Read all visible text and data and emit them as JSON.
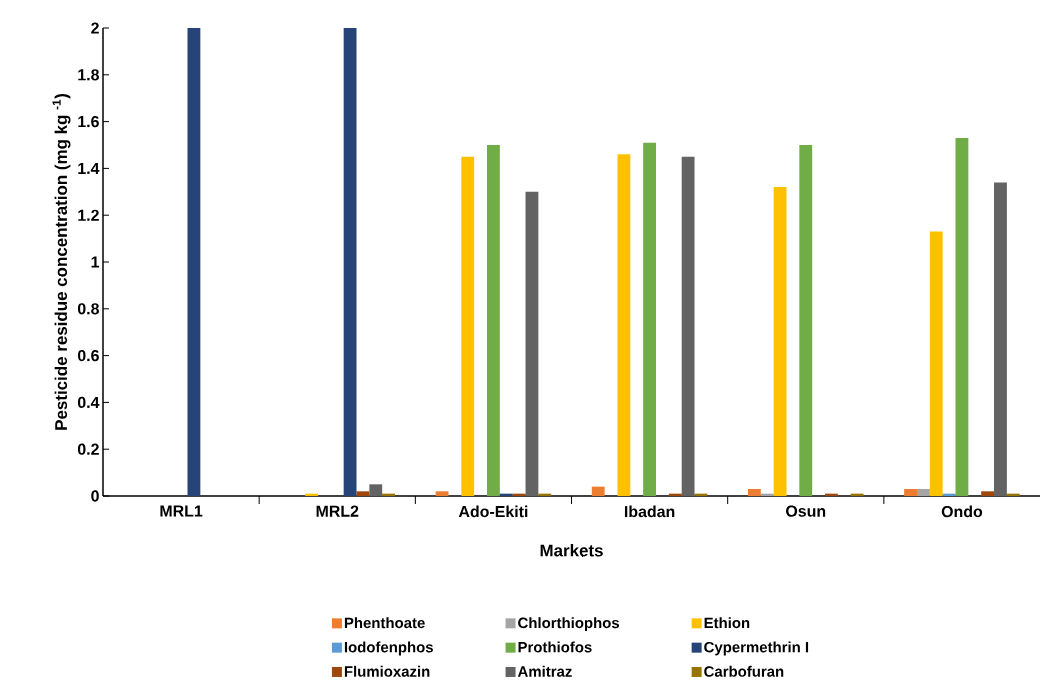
{
  "chart_data": {
    "type": "bar",
    "xlabel": "Markets",
    "ylabel": "Pesticide residue concentration (mg kg $^{-1}$)",
    "categories": [
      "MRL1",
      "MRL2",
      "Ado-Ekiti",
      "Ibadan",
      "Osun",
      "Ondo"
    ],
    "series": [
      {
        "name": "Phenthoate",
        "color": "#ed7d31",
        "values": [
          0,
          0,
          0.02,
          0.04,
          0.03,
          0.03
        ]
      },
      {
        "name": "Chlorthiophos",
        "color": "#a5a5a5",
        "values": [
          0,
          0,
          0,
          0,
          0.01,
          0.03
        ]
      },
      {
        "name": "Ethion",
        "color": "#ffc000",
        "values": [
          0,
          0.01,
          1.45,
          1.46,
          1.32,
          1.13
        ]
      },
      {
        "name": "Iodofenphos",
        "color": "#5b9bd5",
        "values": [
          0,
          0,
          0,
          0,
          0,
          0.01
        ]
      },
      {
        "name": "Prothiofos",
        "color": "#70ad47",
        "values": [
          0,
          0,
          1.5,
          1.51,
          1.5,
          1.53
        ]
      },
      {
        "name": "Cypermethrin I",
        "color": "#264478",
        "values": [
          2,
          2,
          0.01,
          0,
          0,
          0
        ]
      },
      {
        "name": "Flumioxazin",
        "color": "#9e480e",
        "values": [
          0,
          0.02,
          0.01,
          0.01,
          0.01,
          0.02
        ]
      },
      {
        "name": "Amitraz",
        "color": "#636363",
        "values": [
          0,
          0.05,
          1.3,
          1.45,
          0,
          1.34
        ]
      },
      {
        "name": "Carbofuran",
        "color": "#997300",
        "values": [
          0,
          0.01,
          0.01,
          0.01,
          0.01,
          0.01
        ]
      }
    ],
    "ylim": [
      0,
      2
    ],
    "yticks": [
      0,
      0.2,
      0.4,
      0.6,
      0.8,
      1,
      1.2,
      1.4,
      1.6,
      1.8,
      2
    ],
    "grid": false,
    "legend": "bottom"
  }
}
